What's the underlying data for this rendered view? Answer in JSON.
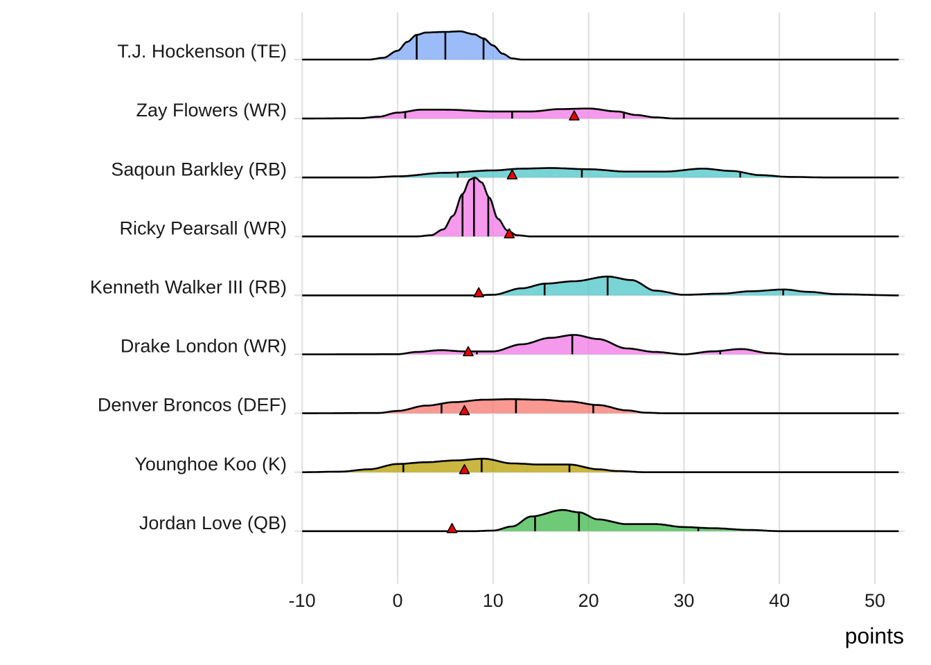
{
  "chart_data": {
    "type": "ridgeline",
    "title": "",
    "xlabel": "points",
    "ylabel": "",
    "xlim": [
      -10,
      52.5
    ],
    "x_ticks": [
      -10,
      0,
      10,
      20,
      30,
      40,
      50
    ],
    "x_tick_labels": [
      "-10",
      "0",
      "10",
      "20",
      "30",
      "40",
      "50"
    ],
    "grid": true,
    "legend": "none",
    "marker_color": "#EE0000",
    "series": [
      {
        "name": "T.J. Hockenson (TE)",
        "color": "#7AA6F5",
        "density": [
          [
            -10,
            0
          ],
          [
            -3,
            0
          ],
          [
            -1.5,
            0.03
          ],
          [
            0,
            0.15
          ],
          [
            1,
            0.3
          ],
          [
            2,
            0.42
          ],
          [
            3,
            0.46
          ],
          [
            5,
            0.47
          ],
          [
            6.5,
            0.48
          ],
          [
            8,
            0.43
          ],
          [
            9,
            0.36
          ],
          [
            10,
            0.24
          ],
          [
            11,
            0.1
          ],
          [
            12,
            0.02
          ],
          [
            13,
            0
          ],
          [
            52.5,
            0
          ]
        ],
        "quantiles": [
          2,
          5,
          9
        ],
        "marker": null
      },
      {
        "name": "Zay Flowers (WR)",
        "color": "#F177E6",
        "density": [
          [
            -10,
            0
          ],
          [
            -4,
            0.005
          ],
          [
            -2,
            0.03
          ],
          [
            0,
            0.1
          ],
          [
            2.5,
            0.15
          ],
          [
            5,
            0.15
          ],
          [
            10,
            0.12
          ],
          [
            14,
            0.12
          ],
          [
            17,
            0.16
          ],
          [
            20,
            0.17
          ],
          [
            23,
            0.12
          ],
          [
            25,
            0.06
          ],
          [
            27,
            0.02
          ],
          [
            29,
            0
          ],
          [
            52.5,
            0
          ]
        ],
        "quantiles": [
          0.8,
          12,
          23.7
        ],
        "marker": 18.5
      },
      {
        "name": "Saqoun Barkley (RB)",
        "color": "#4CC6C8",
        "density": [
          [
            -10,
            0
          ],
          [
            -3,
            0
          ],
          [
            0,
            0.02
          ],
          [
            5,
            0.08
          ],
          [
            10,
            0.12
          ],
          [
            13,
            0.15
          ],
          [
            16,
            0.16
          ],
          [
            20,
            0.14
          ],
          [
            24,
            0.1
          ],
          [
            28,
            0.1
          ],
          [
            32,
            0.15
          ],
          [
            35,
            0.11
          ],
          [
            38,
            0.04
          ],
          [
            41,
            0.01
          ],
          [
            45,
            0
          ],
          [
            52.5,
            0
          ]
        ],
        "quantiles": [
          6.3,
          19.3,
          35.9
        ],
        "marker": 12
      },
      {
        "name": "Ricky Pearsall (WR)",
        "color": "#F177E6",
        "density": [
          [
            -10,
            0
          ],
          [
            2,
            0
          ],
          [
            3.5,
            0.02
          ],
          [
            4.8,
            0.12
          ],
          [
            5.8,
            0.35
          ],
          [
            6.8,
            0.72
          ],
          [
            7.6,
            0.97
          ],
          [
            8.1,
            1.0
          ],
          [
            8.8,
            0.92
          ],
          [
            9.6,
            0.66
          ],
          [
            10.5,
            0.3
          ],
          [
            11.5,
            0.1
          ],
          [
            12.5,
            0.02
          ],
          [
            14,
            0
          ],
          [
            52.5,
            0
          ]
        ],
        "quantiles": [
          6.8,
          8.0,
          9.5
        ],
        "marker": 11.7
      },
      {
        "name": "Kenneth Walker III (RB)",
        "color": "#4CC6C8",
        "density": [
          [
            -10,
            0
          ],
          [
            8,
            0
          ],
          [
            10,
            0.01
          ],
          [
            13,
            0.12
          ],
          [
            15.5,
            0.2
          ],
          [
            18.5,
            0.24
          ],
          [
            22,
            0.32
          ],
          [
            24.5,
            0.26
          ],
          [
            27,
            0.08
          ],
          [
            30,
            0.01
          ],
          [
            34,
            0.03
          ],
          [
            37,
            0.07
          ],
          [
            40.5,
            0.1
          ],
          [
            43,
            0.06
          ],
          [
            46,
            0.02
          ],
          [
            52.5,
            0
          ]
        ],
        "quantiles": [
          15.4,
          22,
          40.4
        ],
        "marker": 8.5
      },
      {
        "name": "Drake London (WR)",
        "color": "#F177E6",
        "density": [
          [
            -10,
            0
          ],
          [
            0,
            0.002
          ],
          [
            2,
            0.04
          ],
          [
            4.5,
            0.07
          ],
          [
            7,
            0.05
          ],
          [
            10,
            0.05
          ],
          [
            13,
            0.17
          ],
          [
            16,
            0.28
          ],
          [
            18.5,
            0.33
          ],
          [
            21,
            0.26
          ],
          [
            24,
            0.1
          ],
          [
            27,
            0.04
          ],
          [
            30,
            0.0
          ],
          [
            33,
            0.05
          ],
          [
            36,
            0.09
          ],
          [
            39,
            0.02
          ],
          [
            41,
            0
          ],
          [
            52.5,
            0
          ]
        ],
        "quantiles": [
          8.3,
          18.3,
          33.8
        ],
        "marker": 7.4
      },
      {
        "name": "Denver Broncos (DEF)",
        "color": "#F8766D",
        "density": [
          [
            -10,
            0
          ],
          [
            -2,
            0.005
          ],
          [
            0,
            0.04
          ],
          [
            3,
            0.13
          ],
          [
            6,
            0.19
          ],
          [
            9,
            0.23
          ],
          [
            12,
            0.24
          ],
          [
            15,
            0.23
          ],
          [
            18,
            0.2
          ],
          [
            21,
            0.14
          ],
          [
            24,
            0.05
          ],
          [
            26,
            0.01
          ],
          [
            28,
            0
          ],
          [
            52.5,
            0
          ]
        ],
        "quantiles": [
          4.6,
          12.4,
          20.5
        ],
        "marker": 7
      },
      {
        "name": "Younghoe Koo (K)",
        "color": "#B79F00",
        "density": [
          [
            -10,
            0
          ],
          [
            -6,
            0.01
          ],
          [
            -3,
            0.05
          ],
          [
            0,
            0.14
          ],
          [
            3,
            0.17
          ],
          [
            6,
            0.2
          ],
          [
            9,
            0.23
          ],
          [
            12,
            0.15
          ],
          [
            15,
            0.13
          ],
          [
            18,
            0.13
          ],
          [
            21,
            0.05
          ],
          [
            23,
            0.02
          ],
          [
            26,
            0
          ],
          [
            52.5,
            0
          ]
        ],
        "quantiles": [
          0.6,
          8.8,
          18
        ],
        "marker": 7
      },
      {
        "name": "Jordan Love (QB)",
        "color": "#3DB849",
        "density": [
          [
            -10,
            0
          ],
          [
            8,
            0
          ],
          [
            10,
            0.01
          ],
          [
            12,
            0.08
          ],
          [
            14,
            0.25
          ],
          [
            17.3,
            0.36
          ],
          [
            19,
            0.32
          ],
          [
            21,
            0.2
          ],
          [
            24,
            0.12
          ],
          [
            27,
            0.12
          ],
          [
            30,
            0.07
          ],
          [
            33,
            0.05
          ],
          [
            37,
            0.02
          ],
          [
            40,
            0
          ],
          [
            52.5,
            0
          ]
        ],
        "quantiles": [
          14.4,
          19,
          31.5
        ],
        "marker": 5.7
      }
    ]
  }
}
